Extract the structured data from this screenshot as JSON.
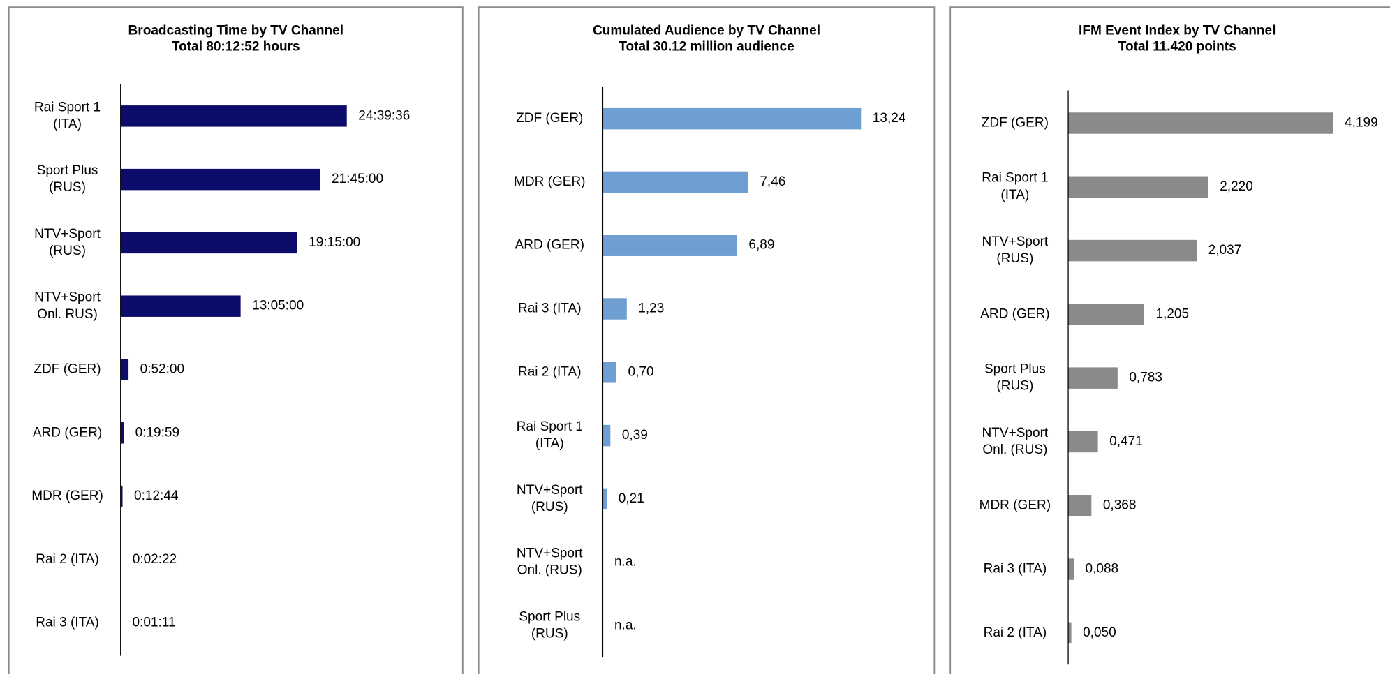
{
  "chart_data": [
    {
      "type": "bar",
      "title": "Broadcasting Time by TV Channel",
      "subtitle": "Total 80:12:52 hours",
      "categories": [
        "Rai Sport 1\n(ITA)",
        "Sport Plus\n(RUS)",
        "NTV+Sport\n(RUS)",
        "NTV+Sport\nOnl. RUS)",
        "ZDF (GER)",
        "ARD (GER)",
        "MDR (GER)",
        "Rai 2 (ITA)",
        "Rai 3 (ITA)"
      ],
      "values": [
        24.66,
        21.75,
        19.25,
        13.0833,
        0.8667,
        0.3331,
        0.2122,
        0.0394,
        0.0197
      ],
      "value_labels": [
        "24:39:36",
        "21:45:00",
        "19:15:00",
        "13:05:00",
        "0:52:00",
        "0:19:59",
        "0:12:44",
        "0:02:22",
        "0:01:11"
      ],
      "color": "#0c0c6a",
      "xlim": [
        0,
        37.3
      ]
    },
    {
      "type": "bar",
      "title": "Cumulated Audience by TV Channel",
      "subtitle": "Total 30.12 million audience",
      "categories": [
        "ZDF (GER)",
        "MDR (GER)",
        "ARD (GER)",
        "Rai 3 (ITA)",
        "Rai 2 (ITA)",
        "Rai Sport 1\n(ITA)",
        "NTV+Sport\n(RUS)",
        "NTV+Sport\nOnl. (RUS)",
        "Sport Plus\n(RUS)"
      ],
      "values": [
        13.24,
        7.46,
        6.89,
        1.23,
        0.7,
        0.39,
        0.21,
        null,
        null
      ],
      "value_labels": [
        "13,24",
        "7,46",
        "6,89",
        "1,23",
        "0,70",
        "0,39",
        "0,21",
        "n.a.",
        "n.a."
      ],
      "color": "#6f9fd2",
      "xlim": [
        0,
        17.0
      ]
    },
    {
      "type": "bar",
      "title": "IFM Event Index by TV Channel",
      "subtitle": "Total 11.420 points",
      "categories": [
        "ZDF (GER)",
        "Rai Sport 1\n(ITA)",
        "NTV+Sport\n(RUS)",
        "ARD (GER)",
        "Sport Plus\n(RUS)",
        "NTV+Sport\nOnl. (RUS)",
        "MDR (GER)",
        "Rai 3 (ITA)",
        "Rai 2 (ITA)"
      ],
      "values": [
        4.199,
        2.22,
        2.037,
        1.205,
        0.783,
        0.471,
        0.368,
        0.088,
        0.05
      ],
      "value_labels": [
        "4,199",
        "2,220",
        "2,037",
        "1,205",
        "0,783",
        "0,471",
        "0,368",
        "0,088",
        "0,050"
      ],
      "color": "#8a8a8a",
      "xlim": [
        0,
        5.1
      ]
    }
  ]
}
